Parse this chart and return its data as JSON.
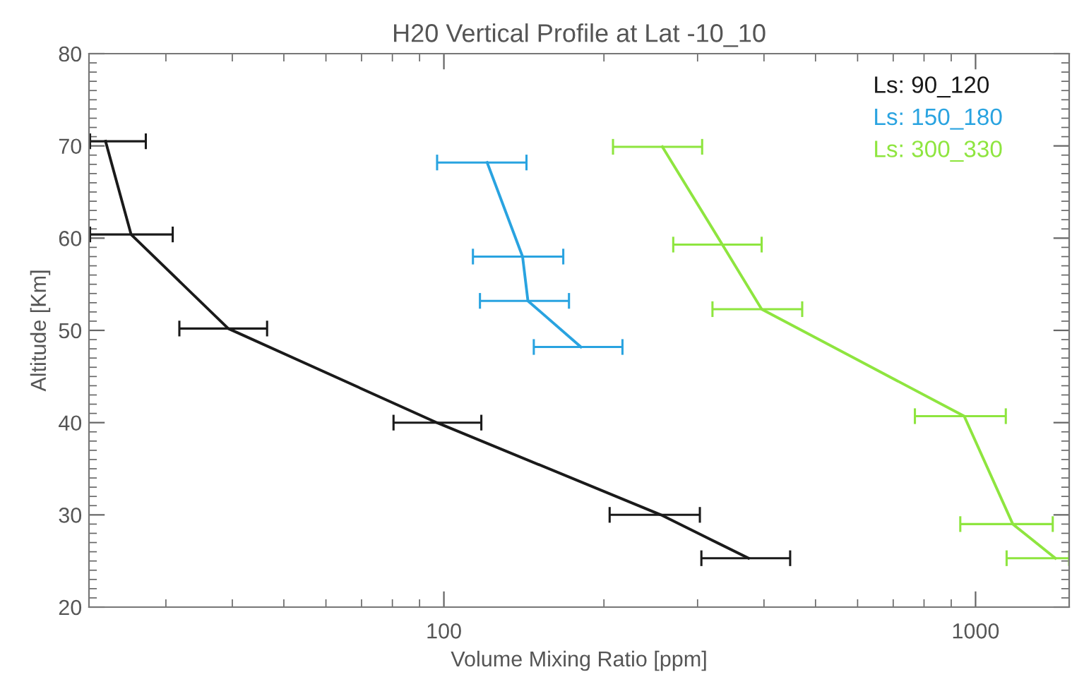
{
  "chart_data": {
    "type": "line",
    "title": "H20 Vertical Profile at Lat -10_10",
    "xlabel": "Volume Mixing Ratio [ppm]",
    "ylabel": "Altitude [Km]",
    "log": "x",
    "xlim": [
      21.5,
      1500
    ],
    "xticks": [
      100,
      1000
    ],
    "ylim": [
      20,
      80
    ],
    "yticks": [
      20,
      30,
      40,
      50,
      60,
      70,
      80
    ],
    "grid": false,
    "legend": "top right",
    "marker": "none",
    "line_style": "solid",
    "series": [
      {
        "name": "Ls: 90_120",
        "color": "#1a1a1a",
        "x": [
          23.1,
          25.8,
          39.3,
          97,
          256,
          374
        ],
        "values": [
          70.5,
          60.4,
          50.2,
          40,
          30.0,
          25.3
        ],
        "xerrors": [
          [
            21.6,
            27.5
          ],
          [
            21.6,
            30.9
          ],
          [
            31.8,
            46.5
          ],
          [
            80.4,
            117.6
          ],
          [
            205,
            303
          ],
          [
            305,
            448
          ]
        ]
      },
      {
        "name": "Ls: 150_180",
        "color": "#29a3e0",
        "x": [
          120.6,
          140.6,
          143.9,
          181
        ],
        "values": [
          68.2,
          58.0,
          53.2,
          48.2
        ],
        "xerrors": [
          [
            97.1,
            143
          ],
          [
            113.4,
            167.7
          ],
          [
            116.9,
            171.9
          ],
          [
            147.6,
            216.7
          ]
        ]
      },
      {
        "name": "Ls: 300_330",
        "color": "#8ee53f",
        "x": [
          257.6,
          334,
          396,
          952,
          1175,
          1413
        ],
        "values": [
          69.9,
          59.3,
          52.3,
          40.7,
          29.0,
          25.3
        ],
        "xerrors": [
          [
            208,
            306
          ],
          [
            270,
            396
          ],
          [
            320,
            472
          ],
          [
            769,
            1140
          ],
          [
            936,
            1397
          ],
          [
            1144,
            1500
          ]
        ]
      }
    ]
  }
}
